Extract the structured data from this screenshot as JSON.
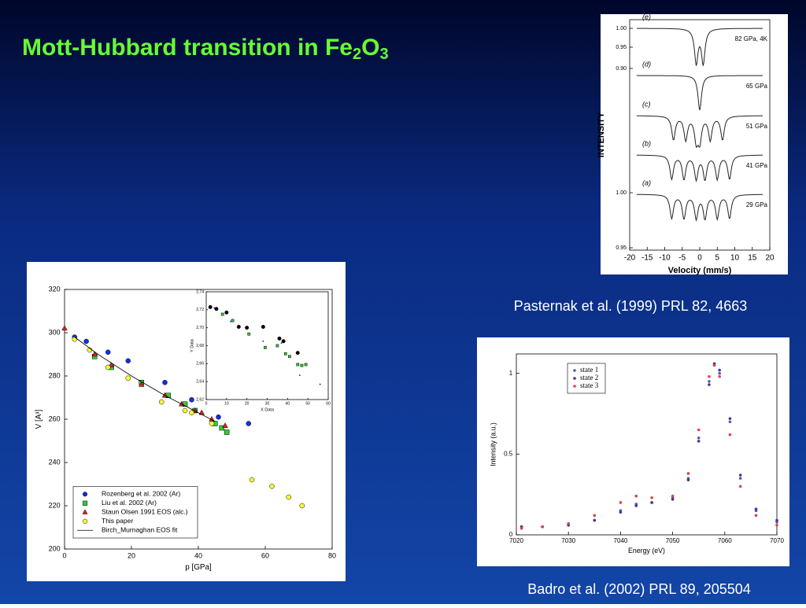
{
  "title": {
    "main": "Mott-Hubbard transition in Fe",
    "sub1": "2",
    "mid": "O",
    "sub2": "3"
  },
  "captions": [
    "Pasternak et al. (1999) PRL 82, 4663",
    "Badro et al. (2002) PRL 89, 205504"
  ],
  "chart_data": [
    {
      "type": "scatter",
      "xlabel": "p [GPa]",
      "ylabel": "V [A³]",
      "xlim": [
        0,
        80
      ],
      "xticks": [
        0,
        20,
        40,
        60,
        80
      ],
      "ylim": [
        200,
        320
      ],
      "yticks": [
        200,
        220,
        240,
        260,
        280,
        300,
        320
      ],
      "legend": "lower left",
      "series": [
        {
          "name": "Rozenberg et al. 2002 (Ar)",
          "marker": "circle",
          "color": "#1030e0",
          "x": [
            3,
            6.5,
            13,
            19,
            30,
            38,
            46,
            55
          ],
          "values": [
            298,
            296,
            291,
            287,
            277,
            269,
            261,
            258
          ]
        },
        {
          "name": "Liu et al. 2002 (Ar)",
          "marker": "square",
          "color": "#33cc33",
          "x": [
            9,
            14,
            23,
            31,
            36,
            39,
            45,
            47,
            48.5
          ],
          "values": [
            289,
            284,
            277,
            271,
            267,
            264,
            258,
            256,
            254
          ]
        },
        {
          "name": "Staun Olsen 1991 EOS (alc.)",
          "marker": "triangle",
          "color": "#dd2222",
          "x": [
            0,
            9,
            14,
            23,
            30,
            35,
            39,
            41,
            44,
            48
          ],
          "values": [
            302,
            290,
            285,
            276,
            271,
            267,
            264,
            263,
            260,
            257
          ]
        },
        {
          "name": "This paper",
          "marker": "circle",
          "color": "#ffff33",
          "x": [
            3,
            7.5,
            13,
            19,
            29,
            36,
            38,
            44,
            56,
            62,
            67,
            71
          ],
          "values": [
            297,
            292,
            284,
            279,
            268,
            264,
            263,
            258,
            232,
            229,
            224,
            220
          ]
        },
        {
          "name": "Birch_Murnaghan EOS fit",
          "marker": "line",
          "color": "#000000",
          "x": [
            3,
            10,
            20,
            30,
            40,
            45
          ],
          "values": [
            298,
            290,
            280,
            271,
            263,
            259
          ]
        }
      ]
    },
    {
      "type": "scatter",
      "xlabel": "X Data",
      "ylabel": "Y Data",
      "xlim": [
        0,
        60
      ],
      "xticks": [
        0,
        10,
        20,
        30,
        40,
        50,
        60
      ],
      "ylim": [
        2.62,
        2.74
      ],
      "yticks": [
        {
          "value": 2.62,
          "label": "2,62"
        },
        {
          "value": 2.64,
          "label": "2,64"
        },
        {
          "value": 2.66,
          "label": "2,66"
        },
        {
          "value": 2.68,
          "label": "2,68"
        },
        {
          "value": 2.7,
          "label": "2,70"
        },
        {
          "value": 2.72,
          "label": "2,72"
        },
        {
          "value": 2.74,
          "label": "2,74"
        }
      ],
      "series": [
        {
          "marker": "bigcircle",
          "color": "#000000",
          "x": [
            2,
            5,
            10,
            16,
            20,
            28,
            36,
            38,
            45
          ],
          "values": [
            2.723,
            2.721,
            2.717,
            2.701,
            2.7,
            2.701,
            2.688,
            2.685,
            2.672
          ]
        },
        {
          "marker": "square",
          "color": "#33cc33",
          "x": [
            8,
            13,
            21,
            29,
            35,
            39,
            41,
            45,
            47,
            49
          ],
          "values": [
            2.715,
            2.708,
            2.693,
            2.678,
            2.68,
            2.671,
            2.668,
            2.659,
            2.658,
            2.659
          ]
        },
        {
          "marker": "dot",
          "color": "#1030e0",
          "x": [
            4,
            12,
            28,
            37,
            46,
            56
          ],
          "values": [
            2.722,
            2.707,
            2.685,
            2.683,
            2.647,
            2.637
          ]
        }
      ]
    },
    {
      "type": "spectrum",
      "xlabel": "Velocity (mm/s)",
      "ylabel": "INTENSITY",
      "xlim": [
        -20,
        20
      ],
      "xticks": [
        -20,
        -15,
        -10,
        -5,
        0,
        5,
        10,
        15,
        20
      ],
      "ylabels": [
        "1.00",
        "0.95",
        "0.90",
        "1.00",
        "0.95"
      ],
      "series": [
        {
          "label": "(e)",
          "name": "82 GPa, 4K",
          "dips": [
            -1,
            1
          ]
        },
        {
          "label": "(d)",
          "name": "65 GPa",
          "dips": [
            0
          ]
        },
        {
          "label": "(c)",
          "name": "51 GPa",
          "dips": [
            -7.5,
            -4,
            -1,
            0,
            3,
            6.5
          ]
        },
        {
          "label": "(b)",
          "name": "41 GPa",
          "dips": [
            -8,
            -4.5,
            -1,
            1.5,
            5,
            8.5
          ]
        },
        {
          "label": "(a)",
          "name": "29 GPa",
          "dips": [
            -8,
            -4.5,
            -1,
            1.5,
            5,
            8.5
          ]
        }
      ]
    },
    {
      "type": "scatter",
      "xlabel": "Energy (eV)",
      "ylabel": "Intensity (a.u.)",
      "xlim": [
        7020,
        7070
      ],
      "xticks": [
        7020,
        7030,
        7040,
        7050,
        7060,
        7070
      ],
      "ylim": [
        0,
        1.12
      ],
      "yticks": [
        0,
        0.5,
        1
      ],
      "legend": "upper left",
      "x": [
        7021,
        7025,
        7030,
        7035,
        7040,
        7043,
        7046,
        7050,
        7053,
        7055,
        7057,
        7058,
        7059,
        7061,
        7063,
        7066,
        7070
      ],
      "series": [
        {
          "name": "state 1",
          "marker": "dot",
          "color": "#4060c0",
          "values": [
            0.05,
            0.05,
            0.06,
            0.09,
            0.15,
            0.19,
            0.2,
            0.23,
            0.35,
            0.6,
            0.95,
            1.05,
            1.0,
            0.7,
            0.35,
            0.15,
            0.08
          ]
        },
        {
          "name": "state 2",
          "marker": "dot",
          "color": "#503090",
          "values": [
            0.05,
            0.05,
            0.06,
            0.09,
            0.14,
            0.18,
            0.2,
            0.22,
            0.34,
            0.58,
            0.93,
            1.06,
            1.02,
            0.72,
            0.37,
            0.16,
            0.09
          ]
        },
        {
          "name": "state 3",
          "marker": "dot",
          "color": "#e04050",
          "values": [
            0.04,
            0.05,
            0.07,
            0.12,
            0.2,
            0.24,
            0.23,
            0.24,
            0.38,
            0.65,
            0.98,
            1.05,
            0.98,
            0.62,
            0.3,
            0.12,
            0.06
          ]
        }
      ]
    }
  ]
}
